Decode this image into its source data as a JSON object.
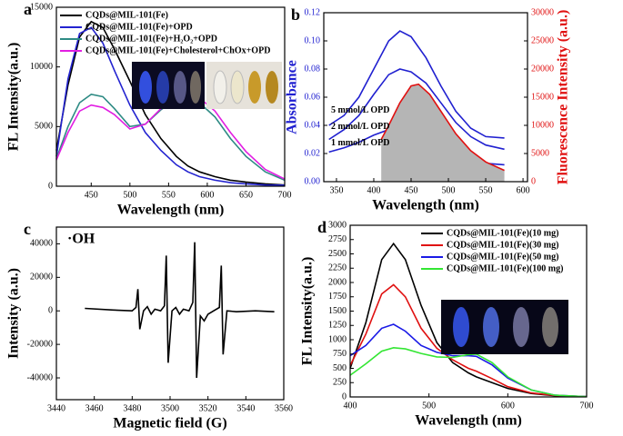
{
  "chart_data": [
    {
      "type": "line",
      "label": "a",
      "xlabel": "Wavelength (nm)",
      "ylabel": "FL Intensity(a.u.)",
      "legend": "top-left",
      "x": [
        405,
        420,
        435,
        450,
        465,
        480,
        500,
        520,
        540,
        560,
        575,
        590,
        610,
        630,
        650,
        675,
        700
      ],
      "xlim": [
        405,
        700
      ],
      "xticks": [
        450,
        500,
        550,
        600,
        650,
        700
      ],
      "ylim": [
        0,
        15000
      ],
      "yticks": [
        0,
        5000,
        10000,
        15000
      ],
      "series": [
        {
          "name": "CQDs@MIL-101(Fe)",
          "color": "#000000",
          "values": [
            3000,
            8500,
            12500,
            13800,
            13300,
            11500,
            8800,
            6000,
            4000,
            2500,
            1700,
            1200,
            800,
            500,
            350,
            200,
            100
          ]
        },
        {
          "name": "CQDs@MIL-101(Fe)+OPD",
          "color": "#2323d0",
          "values": [
            2500,
            9000,
            12800,
            13300,
            12000,
            9700,
            6800,
            4500,
            3000,
            1800,
            1200,
            800,
            500,
            300,
            200,
            100,
            80
          ]
        },
        {
          "name": "CQDs@MIL-101(Fe)+H₂O₂+OPD",
          "color": "#2e8b84",
          "values": [
            2300,
            5000,
            7000,
            7700,
            7500,
            6500,
            5000,
            5200,
            6400,
            7300,
            7400,
            7000,
            5800,
            4000,
            2500,
            1200,
            500
          ]
        },
        {
          "name": "CQDs@MIL-101(Fe)+Cholesterol+ChOx+OPD",
          "color": "#e21ee2",
          "values": [
            2200,
            4500,
            6300,
            6800,
            6600,
            6000,
            4800,
            5200,
            6500,
            7500,
            7700,
            7400,
            6300,
            4500,
            2900,
            1400,
            600
          ]
        }
      ]
    },
    {
      "type": "line",
      "label": "b",
      "xlabel": "Wavelength (nm)",
      "ylabel": "Absorbance",
      "y2label": "Fluorescence Intensity (a.u.)",
      "ycolor": "#2020d0",
      "y2color": "#e01010",
      "x": [
        340,
        360,
        380,
        400,
        420,
        435,
        450,
        470,
        490,
        510,
        530,
        550,
        575
      ],
      "xlim": [
        333,
        606
      ],
      "xticks": [
        350,
        400,
        450,
        500,
        550,
        600
      ],
      "ylim": [
        0,
        0.12
      ],
      "yticks": [
        {
          "value": 0,
          "label": "0.00"
        },
        0.02,
        0.04,
        0.06,
        0.08,
        {
          "value": 0.1,
          "label": "0.10"
        },
        0.12
      ],
      "y2lim": [
        0,
        30000
      ],
      "y2ticks": [
        0,
        5000,
        10000,
        15000,
        20000,
        25000,
        30000
      ],
      "series": [
        {
          "name": "5 mmol/L OPD",
          "color": "#2020d0",
          "values": [
            0.04,
            0.047,
            0.06,
            0.08,
            0.1,
            0.107,
            0.103,
            0.088,
            0.068,
            0.05,
            0.038,
            0.032,
            0.031
          ]
        },
        {
          "name": "2 mmol/L OPD",
          "color": "#2020d0",
          "values": [
            0.03,
            0.037,
            0.047,
            0.062,
            0.076,
            0.08,
            0.078,
            0.07,
            0.056,
            0.042,
            0.032,
            0.026,
            0.023
          ]
        },
        {
          "name": "1 mmol/L OPD",
          "color": "#2020d0",
          "values": [
            0.021,
            0.024,
            0.028,
            0.033,
            0.037,
            0.038,
            0.036,
            0.03,
            0.023,
            0.018,
            0.015,
            0.013,
            0.012
          ]
        },
        {
          "color": "#e01010",
          "fill": "#b5b5b5",
          "axis": "y2",
          "x": [
            410,
            420,
            435,
            450,
            460,
            475,
            490,
            510,
            530,
            550,
            575
          ],
          "values": [
            7500,
            10000,
            14000,
            17000,
            17300,
            15500,
            12500,
            8500,
            5500,
            3500,
            2000
          ]
        }
      ]
    },
    {
      "type": "line",
      "label": "c",
      "xlabel": "Magnetic field (G)",
      "ylabel": "Intensity (a.u.)",
      "annotation": "·OH",
      "x": [
        3455,
        3470,
        3480,
        3482,
        3483,
        3484,
        3486,
        3488,
        3490,
        3492,
        3495,
        3497,
        3498,
        3499,
        3501,
        3503,
        3505,
        3507,
        3510,
        3512,
        3513,
        3514,
        3516,
        3518,
        3520,
        3523,
        3526,
        3527,
        3528,
        3530,
        3535,
        3545,
        3555
      ],
      "xlim": [
        3440,
        3560
      ],
      "xticks": [
        3440,
        3460,
        3480,
        3500,
        3520,
        3540,
        3560
      ],
      "ylim": [
        -53000,
        50000
      ],
      "yticks": [
        -40000,
        -20000,
        0,
        20000,
        40000
      ],
      "series": [
        {
          "color": "#000000",
          "values": [
            1500,
            500,
            0,
            2000,
            13000,
            -11000,
            0,
            2500,
            -2000,
            1000,
            0,
            3000,
            33000,
            -31000,
            0,
            2000,
            -2000,
            1000,
            0,
            5000,
            41000,
            -40000,
            -3000,
            -6000,
            -2000,
            0,
            2000,
            27000,
            -26000,
            0,
            -500,
            0,
            -500
          ]
        }
      ]
    },
    {
      "type": "line",
      "label": "d",
      "xlabel": "Wavelength (nm)",
      "ylabel": "FL Intensity(a.u.)",
      "legend": "top-right",
      "x": [
        400,
        420,
        440,
        455,
        470,
        490,
        510,
        530,
        550,
        560,
        580,
        600,
        630,
        660,
        700
      ],
      "xlim": [
        400,
        700
      ],
      "xticks": [
        400,
        500,
        600,
        700
      ],
      "ylim": [
        0,
        3000
      ],
      "yticks": [
        0,
        250,
        500,
        750,
        1000,
        1250,
        1500,
        1750,
        2000,
        2250,
        2500,
        2750,
        3000
      ],
      "series": [
        {
          "name": "CQDs@MIL-101(Fe)(10 mg)",
          "color": "#000000",
          "values": [
            500,
            1300,
            2400,
            2680,
            2400,
            1600,
            950,
            600,
            420,
            350,
            250,
            150,
            60,
            20,
            5
          ]
        },
        {
          "name": "CQDs@MIL-101(Fe)(30 mg)",
          "color": "#e01010",
          "values": [
            550,
            1100,
            1800,
            1960,
            1750,
            1200,
            850,
            650,
            500,
            450,
            320,
            180,
            70,
            25,
            5
          ]
        },
        {
          "name": "CQDs@MIL-101(Fe)(50 mg)",
          "color": "#1a1ae6",
          "values": [
            720,
            900,
            1200,
            1270,
            1150,
            900,
            780,
            720,
            720,
            710,
            560,
            330,
            120,
            30,
            5
          ]
        },
        {
          "name": "CQDs@MIL-101(Fe)(100 mg)",
          "color": "#33e633",
          "values": [
            380,
            580,
            800,
            860,
            840,
            760,
            700,
            690,
            740,
            750,
            600,
            350,
            120,
            30,
            5
          ]
        }
      ]
    }
  ]
}
